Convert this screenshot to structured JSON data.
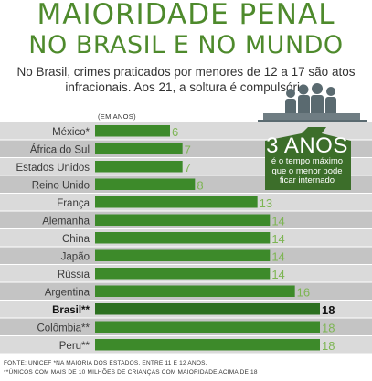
{
  "header": {
    "title_line1": "MAIORIDADE PENAL",
    "title_line2": "NO BRASIL E NO MUNDO",
    "subtitle_line1": "No Brasil, crimes praticados por menores de 12 a 17 são atos",
    "subtitle_line2": "infracionais. Aos  21, a soltura é compulsória"
  },
  "chart_data": {
    "type": "bar",
    "orientation": "horizontal",
    "units_label": "(EM ANOS)",
    "categories": [
      "México*",
      "África do Sul",
      "Estados Unidos",
      "Reino Unido",
      "França",
      "Alemanha",
      "China",
      "Japão",
      "Rússia",
      "Argentina",
      "Brasil**",
      "Colômbia**",
      "Peru**"
    ],
    "values": [
      6,
      7,
      7,
      8,
      13,
      14,
      14,
      14,
      14,
      16,
      18,
      18,
      18
    ],
    "highlight": "Brasil**",
    "xlim": [
      0,
      18
    ],
    "grid": false,
    "legend": "none"
  },
  "callout": {
    "big": "3 ANOS",
    "line1": "é o tempo máximo",
    "line2": "que o menor pode",
    "line3": "ficar internado"
  },
  "footnotes": {
    "line1": "FONTE: UNICEF   *NA MAIORIA DOS ESTADOS, ENTRE 11 E 12 ANOS.",
    "line2": "**ÚNICOS COM MAIS DE 10 MILHÕES DE CRIANÇAS COM MAIORIDADE ACIMA DE 18"
  },
  "colors": {
    "bar": "#3d8a2a",
    "bar_highlight": "#2c7020",
    "value_text": "#7db553",
    "row_light": "#dadada",
    "row_dark": "#c4c4c4",
    "badge": "#3c6e2a",
    "title": "#4e8a2c",
    "people_icon": "#5a6a70"
  }
}
